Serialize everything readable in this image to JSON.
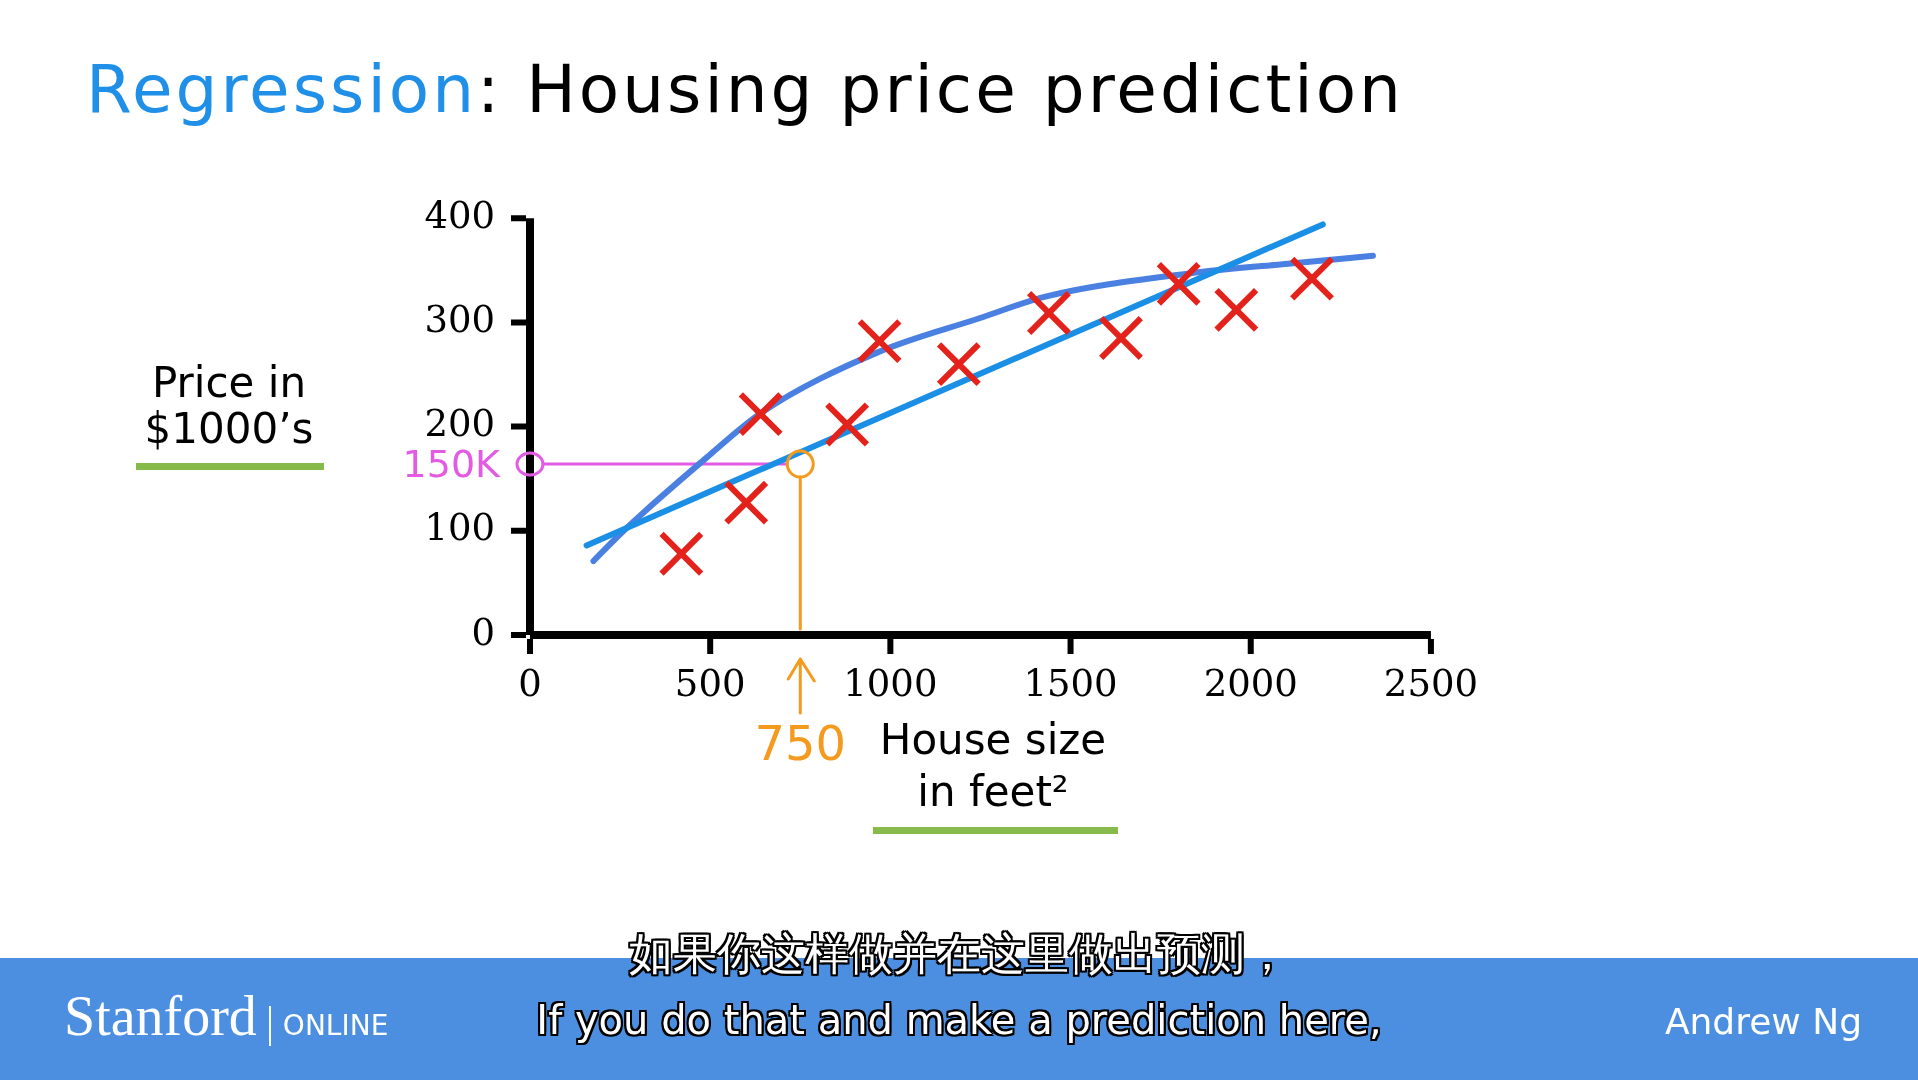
{
  "chart_data": {
    "type": "scatter",
    "title": "Regression: Housing price prediction",
    "xlabel": "House size in feet²",
    "ylabel": "Price in $1000’s",
    "xlim": [
      0,
      2500
    ],
    "xticks": [
      0,
      500,
      1000,
      1500,
      2000,
      2500
    ],
    "ylim": [
      0,
      400
    ],
    "yticks": [
      0,
      100,
      200,
      300,
      400
    ],
    "marker": "cross",
    "series": [
      {
        "type": "scatter",
        "color": "#e3231b",
        "x": [
          420,
          600,
          640,
          880,
          970,
          1190,
          1440,
          1640,
          1800,
          1960,
          2170
        ],
        "values": [
          78,
          127,
          212,
          202,
          282,
          260,
          309,
          285,
          337,
          312,
          342
        ]
      },
      {
        "type": "line",
        "color": "#1b8fe6",
        "marker": "none",
        "x": [
          157,
          2200
        ],
        "values": [
          86,
          394
        ]
      },
      {
        "type": "line",
        "color": "#4a80e2",
        "marker": "none",
        "x": [
          176,
          263,
          486,
          645,
          963,
          1247,
          1433,
          1829,
          2126,
          2339
        ],
        "values": [
          71,
          101,
          169,
          214,
          271,
          304,
          325,
          347,
          357,
          364
        ]
      }
    ],
    "ref_lines": [
      {
        "axis": "y",
        "value": 164,
        "label": "150K",
        "color": "#e25be2"
      },
      {
        "axis": "x",
        "value": 750,
        "label": "750",
        "color": "#f39a1f"
      }
    ],
    "annotations": [
      "如果你这样做并在这里做出预测，",
      "If you do that and make a prediction here,",
      "Stanford ONLINE",
      "Andrew Ng"
    ]
  }
}
